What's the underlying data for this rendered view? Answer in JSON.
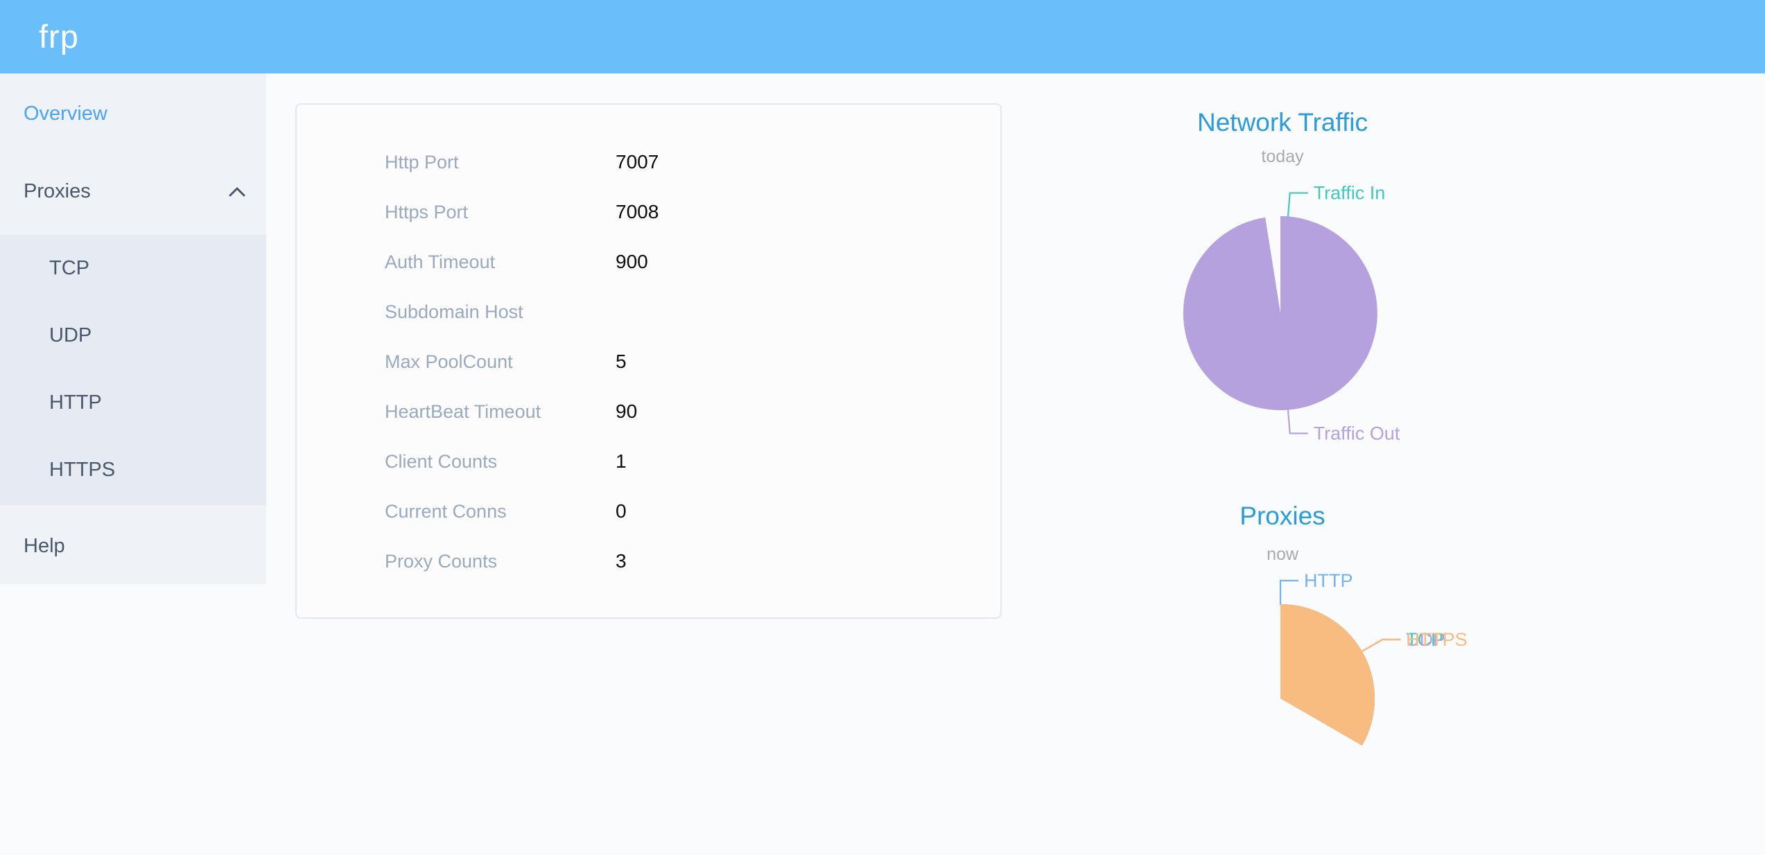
{
  "header": {
    "logo": "frp",
    "background": "#6abef9"
  },
  "sidebar": {
    "overview_label": "Overview",
    "proxies_label": "Proxies",
    "proxy_children": [
      "TCP",
      "UDP",
      "HTTP",
      "HTTPS"
    ],
    "help_label": "Help",
    "active_item": "Overview",
    "active_color": "#4aa3f8"
  },
  "overview_card": {
    "rows": [
      {
        "label": "Http Port",
        "value": "7007"
      },
      {
        "label": "Https Port",
        "value": "7008"
      },
      {
        "label": "Auth Timeout",
        "value": "900"
      },
      {
        "label": "Subdomain Host",
        "value": ""
      },
      {
        "label": "Max PoolCount",
        "value": "5"
      },
      {
        "label": "HeartBeat Timeout",
        "value": "90"
      },
      {
        "label": "Client Counts",
        "value": "1"
      },
      {
        "label": "Current Conns",
        "value": "0"
      },
      {
        "label": "Proxy Counts",
        "value": "3"
      }
    ]
  },
  "chart_data": [
    {
      "type": "pie",
      "title": "Network Traffic",
      "subtitle": "today",
      "legend_position": "none",
      "labels": "outside-with-leader-lines",
      "start_angle_deg": 0,
      "direction": "clockwise-from-top",
      "series": [
        {
          "name": "Traffic In",
          "value": 2.5,
          "color": "#43c8c0"
        },
        {
          "name": "Traffic Out",
          "value": 97.5,
          "color": "#b5a1dd"
        }
      ],
      "values_note": "proportions estimated from slice angles (~9 deg vs ~351 deg)"
    },
    {
      "type": "pie",
      "title": "Proxies",
      "subtitle": "now",
      "legend_position": "none",
      "labels": "outside-with-leader-lines",
      "start_angle_deg": 0,
      "direction": "clockwise-from-top",
      "series": [
        {
          "name": "TCP",
          "value": 1,
          "color": "#43c8c0"
        },
        {
          "name": "UDP",
          "value": 1,
          "color": "#b5a1dd"
        },
        {
          "name": "HTTP",
          "value": 0,
          "color": "#74b2ec"
        },
        {
          "name": "HTTPS",
          "value": 1,
          "color": "#f8bc80"
        }
      ]
    }
  ]
}
